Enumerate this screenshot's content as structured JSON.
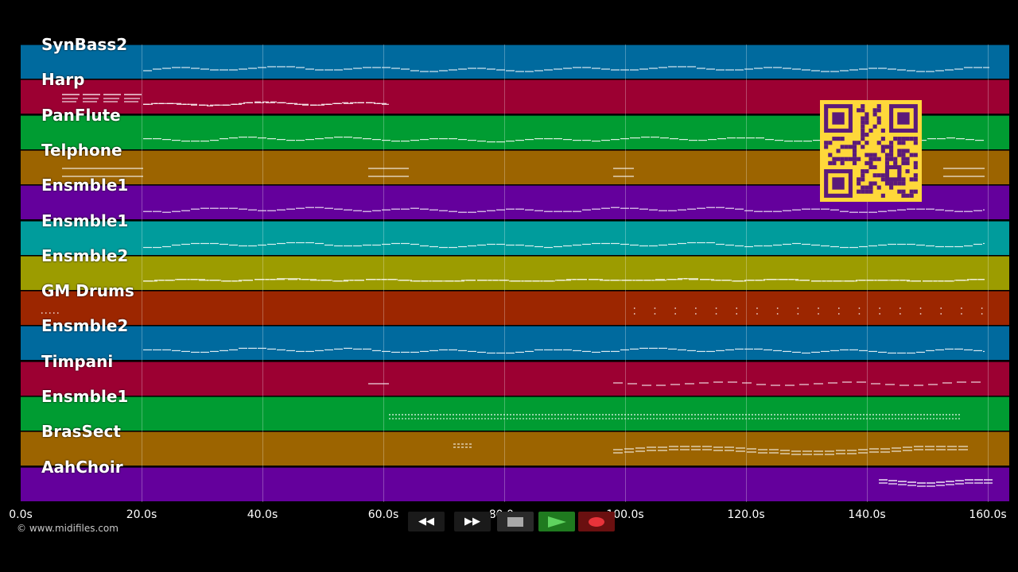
{
  "tracks": [
    {
      "name": "SynBass2",
      "color": "#006a9e"
    },
    {
      "name": "Harp",
      "color": "#9c0032"
    },
    {
      "name": "PanFlute",
      "color": "#009c32"
    },
    {
      "name": "Telphone",
      "color": "#9c6400"
    },
    {
      "name": "Ensmble1",
      "color": "#64009c"
    },
    {
      "name": "Ensmble1",
      "color": "#009c9c"
    },
    {
      "name": "Ensmble2",
      "color": "#9c9c00"
    },
    {
      "name": "GM Drums",
      "color": "#9c2600"
    },
    {
      "name": "Ensmble2",
      "color": "#006a9e"
    },
    {
      "name": "Timpani",
      "color": "#9c0032"
    },
    {
      "name": "Ensmble1",
      "color": "#009c32"
    },
    {
      "name": "BrasSect",
      "color": "#9c6400"
    },
    {
      "name": "AahChoir",
      "color": "#64009c"
    }
  ],
  "time_axis": {
    "ticks": [
      "0.0s",
      "20.0s",
      "40.0s",
      "60.0s",
      "80.0s",
      "100.0s",
      "120.0s",
      "140.0s",
      "160.0s"
    ]
  },
  "footer": {
    "copyright": "© www.midifiles.com"
  },
  "transport": {
    "rewind_icon": "rewind-icon",
    "fastforward_icon": "fast-forward-icon",
    "stop_icon": "stop-icon",
    "play_icon": "play-icon",
    "record_icon": "record-icon",
    "rewind_label": "◀◀",
    "forward_label": "▶▶"
  },
  "qr_code": {
    "icon": "qr-code-icon",
    "color": "#ffd83a",
    "fg": "#5b1a7a"
  }
}
